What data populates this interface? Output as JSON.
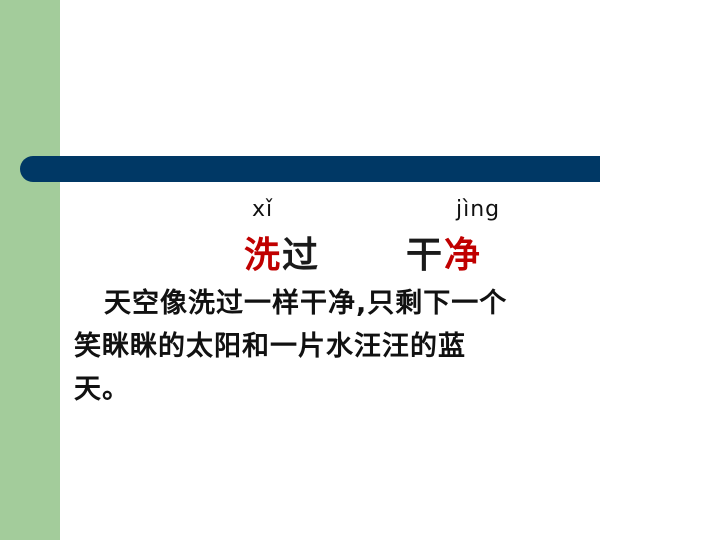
{
  "slide": {
    "pinyin": {
      "xi": "xǐ",
      "jing": "jìng"
    },
    "words": [
      {
        "first": "洗",
        "second": "过"
      },
      {
        "first": "干",
        "second": "净"
      }
    ],
    "sentence_lines": [
      "天空像洗过一样干净,只剩下一个",
      "笑眯眯的太阳和一片水汪汪的蓝",
      "天。"
    ]
  },
  "colors": {
    "side_bar": "#a3cc9b",
    "title_bar": "#003865",
    "highlight": "#c00000"
  }
}
